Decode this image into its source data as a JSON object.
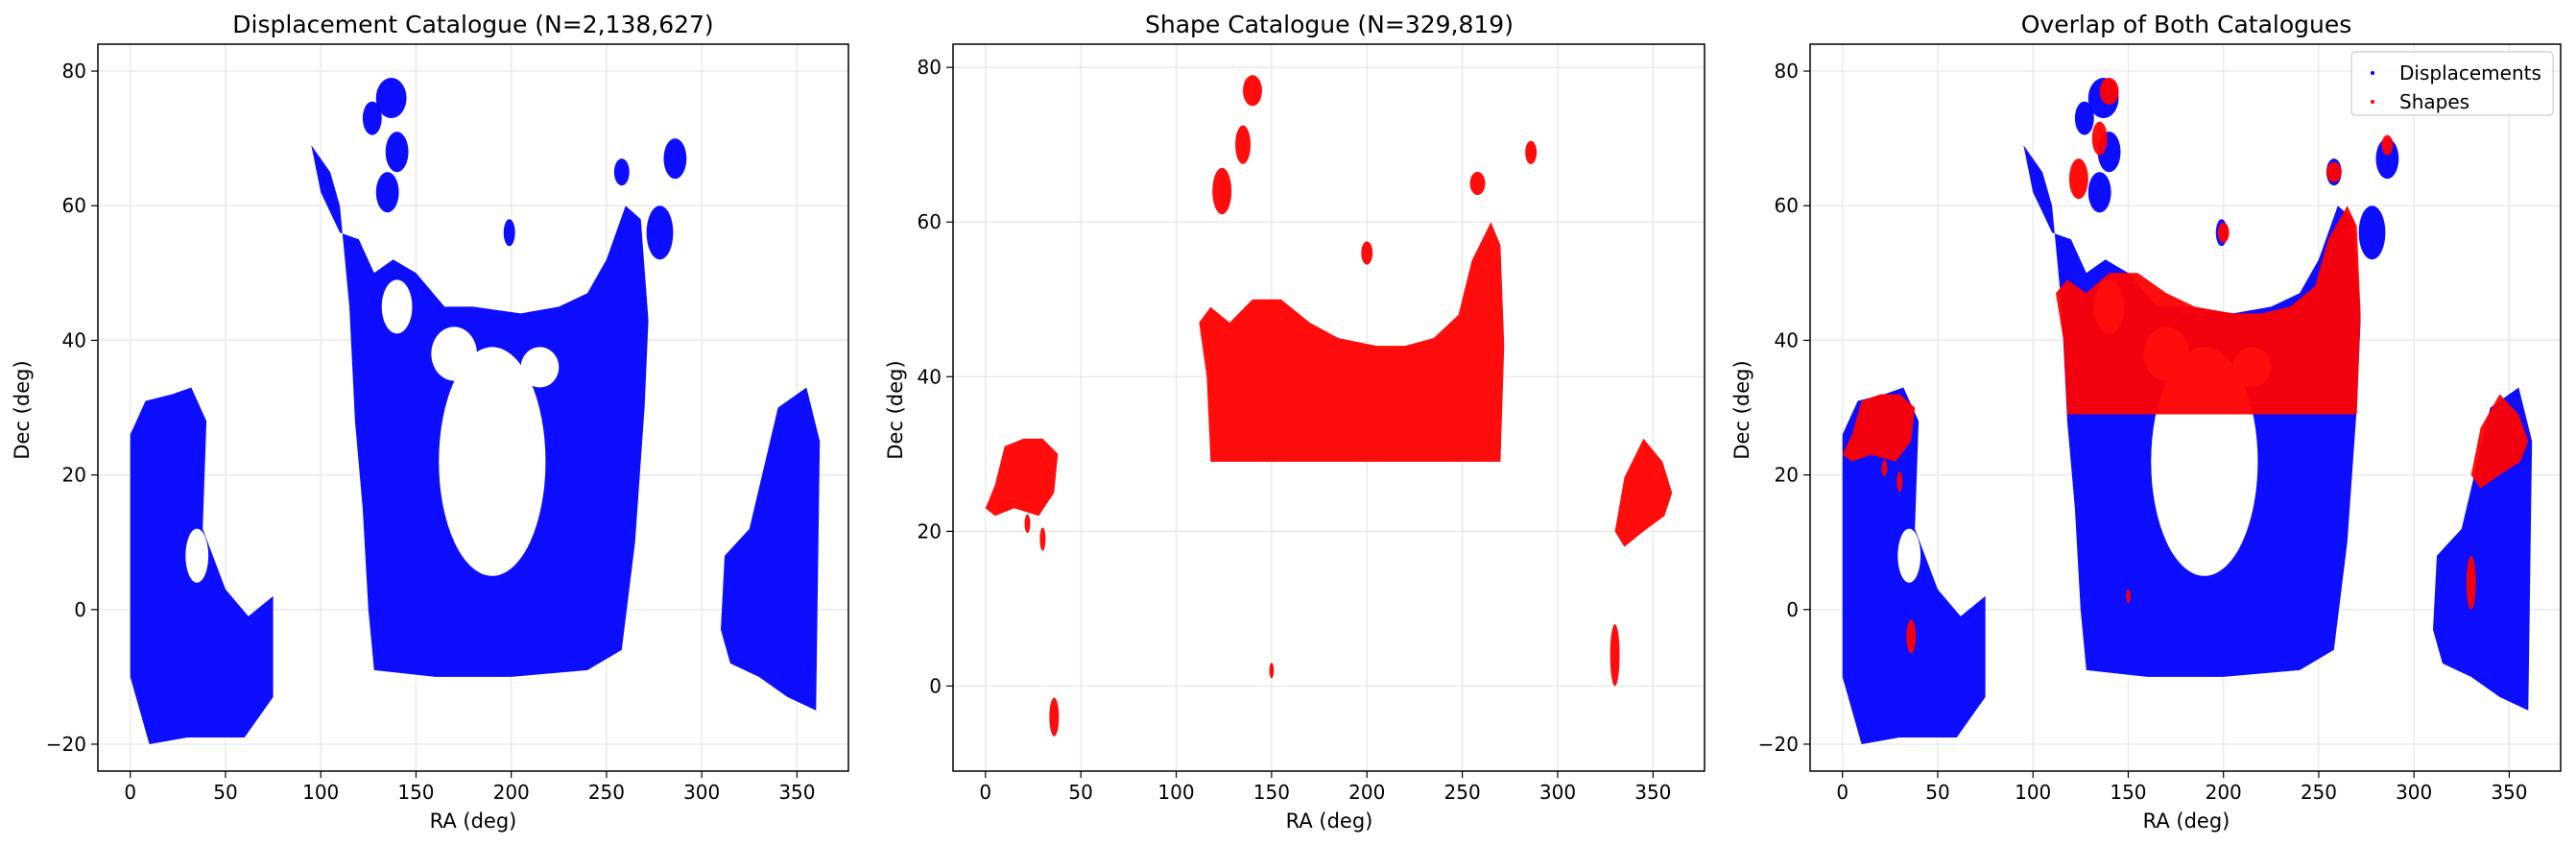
{
  "chart_data": [
    {
      "type": "scatter",
      "title": "Displacement Catalogue (N=2,138,627)",
      "xlabel": "RA (deg)",
      "ylabel": "Dec (deg)",
      "xlim": [
        -17,
        377
      ],
      "ylim": [
        -24,
        84
      ],
      "xticks": [
        "0",
        "50",
        "100",
        "150",
        "200",
        "250",
        "300",
        "350"
      ],
      "yticks": [
        "−20",
        "0",
        "20",
        "40",
        "60",
        "80"
      ],
      "grid": true,
      "series": [
        {
          "color": "#0000ff",
          "regions": [
            {
              "shape": "poly",
              "points": [
                [
                  0,
                  26
                ],
                [
                  8,
                  31
                ],
                [
                  22,
                  32
                ],
                [
                  32,
                  33
                ],
                [
                  40,
                  28
                ],
                [
                  38,
                  12
                ],
                [
                  50,
                  3
                ],
                [
                  62,
                  -1
                ],
                [
                  75,
                  2
                ],
                [
                  75,
                  -13
                ],
                [
                  60,
                  -19
                ],
                [
                  30,
                  -19
                ],
                [
                  10,
                  -20
                ],
                [
                  0,
                  -10
                ]
              ]
            },
            {
              "shape": "poly",
              "points": [
                [
                  115,
                  45
                ],
                [
                  118,
                  28
                ],
                [
                  122,
                  15
                ],
                [
                  125,
                  0
                ],
                [
                  128,
                  -9
                ],
                [
                  160,
                  -10
                ],
                [
                  200,
                  -10
                ],
                [
                  240,
                  -9
                ],
                [
                  258,
                  -6
                ],
                [
                  265,
                  10
                ],
                [
                  270,
                  30
                ],
                [
                  272,
                  43
                ],
                [
                  268,
                  58
                ],
                [
                  260,
                  60
                ],
                [
                  250,
                  52
                ],
                [
                  240,
                  47
                ],
                [
                  225,
                  45
                ],
                [
                  205,
                  44
                ],
                [
                  180,
                  45
                ],
                [
                  165,
                  45
                ],
                [
                  150,
                  50
                ],
                [
                  138,
                  52
                ],
                [
                  128,
                  50
                ],
                [
                  120,
                  55
                ],
                [
                  110,
                  56
                ],
                [
                  100,
                  62
                ],
                [
                  95,
                  69
                ],
                [
                  105,
                  65
                ],
                [
                  110,
                  60
                ]
              ]
            },
            {
              "shape": "ellipse",
              "cx": 137,
              "cy": 76,
              "rx": 8,
              "ry": 3
            },
            {
              "shape": "ellipse",
              "cx": 127,
              "cy": 73,
              "rx": 5,
              "ry": 2.5
            },
            {
              "shape": "ellipse",
              "cx": 140,
              "cy": 68,
              "rx": 6,
              "ry": 3
            },
            {
              "shape": "ellipse",
              "cx": 135,
              "cy": 62,
              "rx": 6,
              "ry": 3
            },
            {
              "shape": "ellipse",
              "cx": 199,
              "cy": 56,
              "rx": 3,
              "ry": 2
            },
            {
              "shape": "ellipse",
              "cx": 258,
              "cy": 65,
              "rx": 4,
              "ry": 2
            },
            {
              "shape": "ellipse",
              "cx": 286,
              "cy": 67,
              "rx": 6,
              "ry": 3
            },
            {
              "shape": "ellipse",
              "cx": 278,
              "cy": 56,
              "rx": 7,
              "ry": 4
            },
            {
              "shape": "poly",
              "points": [
                [
                  310,
                  -3
                ],
                [
                  312,
                  8
                ],
                [
                  325,
                  12
                ],
                [
                  340,
                  30
                ],
                [
                  355,
                  33
                ],
                [
                  362,
                  25
                ],
                [
                  360,
                  -15
                ],
                [
                  345,
                  -13
                ],
                [
                  330,
                  -10
                ],
                [
                  315,
                  -8
                ]
              ]
            }
          ],
          "holes": [
            {
              "shape": "ellipse",
              "cx": 190,
              "cy": 22,
              "rx": 28,
              "ry": 17
            },
            {
              "shape": "ellipse",
              "cx": 170,
              "cy": 38,
              "rx": 12,
              "ry": 4
            },
            {
              "shape": "ellipse",
              "cx": 215,
              "cy": 36,
              "rx": 10,
              "ry": 3
            },
            {
              "shape": "ellipse",
              "cx": 140,
              "cy": 45,
              "rx": 8,
              "ry": 4
            },
            {
              "shape": "ellipse",
              "cx": 35,
              "cy": 8,
              "rx": 6,
              "ry": 4
            }
          ]
        }
      ]
    },
    {
      "type": "scatter",
      "title": "Shape Catalogue (N=329,819)",
      "xlabel": "RA (deg)",
      "ylabel": "Dec (deg)",
      "xlim": [
        -17,
        377
      ],
      "ylim": [
        -11,
        83
      ],
      "xticks": [
        "0",
        "50",
        "100",
        "150",
        "200",
        "250",
        "300",
        "350"
      ],
      "yticks": [
        "0",
        "20",
        "40",
        "60",
        "80"
      ],
      "grid": true,
      "series": [
        {
          "color": "#ff0000",
          "regions": [
            {
              "shape": "poly",
              "points": [
                [
                  0,
                  23
                ],
                [
                  5,
                  26
                ],
                [
                  10,
                  31
                ],
                [
                  20,
                  32
                ],
                [
                  30,
                  32
                ],
                [
                  38,
                  30
                ],
                [
                  36,
                  25
                ],
                [
                  28,
                  22
                ],
                [
                  15,
                  23
                ],
                [
                  5,
                  22
                ]
              ]
            },
            {
              "shape": "ellipse",
              "cx": 22,
              "cy": 21,
              "rx": 1.5,
              "ry": 1.2
            },
            {
              "shape": "ellipse",
              "cx": 30,
              "cy": 19,
              "rx": 1.5,
              "ry": 1.5
            },
            {
              "shape": "ellipse",
              "cx": 36,
              "cy": -4,
              "rx": 2.5,
              "ry": 2.5
            },
            {
              "shape": "poly",
              "points": [
                [
                  112,
                  47
                ],
                [
                  116,
                  40
                ],
                [
                  118,
                  29
                ],
                [
                  160,
                  29
                ],
                [
                  200,
                  29
                ],
                [
                  240,
                  29
                ],
                [
                  270,
                  29
                ],
                [
                  272,
                  44
                ],
                [
                  270,
                  57
                ],
                [
                  265,
                  60
                ],
                [
                  255,
                  55
                ],
                [
                  248,
                  48
                ],
                [
                  235,
                  45
                ],
                [
                  220,
                  44
                ],
                [
                  205,
                  44
                ],
                [
                  185,
                  45
                ],
                [
                  170,
                  47
                ],
                [
                  155,
                  50
                ],
                [
                  140,
                  50
                ],
                [
                  128,
                  47
                ],
                [
                  118,
                  49
                ]
              ]
            },
            {
              "shape": "ellipse",
              "cx": 140,
              "cy": 77,
              "rx": 5,
              "ry": 2
            },
            {
              "shape": "ellipse",
              "cx": 135,
              "cy": 70,
              "rx": 4,
              "ry": 2.5
            },
            {
              "shape": "ellipse",
              "cx": 124,
              "cy": 64,
              "rx": 5,
              "ry": 3
            },
            {
              "shape": "ellipse",
              "cx": 200,
              "cy": 56,
              "rx": 3,
              "ry": 1.5
            },
            {
              "shape": "ellipse",
              "cx": 258,
              "cy": 65,
              "rx": 4,
              "ry": 1.5
            },
            {
              "shape": "ellipse",
              "cx": 286,
              "cy": 69,
              "rx": 3,
              "ry": 1.5
            },
            {
              "shape": "ellipse",
              "cx": 150,
              "cy": 2,
              "rx": 1.2,
              "ry": 1
            },
            {
              "shape": "ellipse",
              "cx": 330,
              "cy": 4,
              "rx": 2.5,
              "ry": 4
            },
            {
              "shape": "poly",
              "points": [
                [
                  330,
                  20
                ],
                [
                  335,
                  27
                ],
                [
                  345,
                  32
                ],
                [
                  355,
                  29
                ],
                [
                  360,
                  25
                ],
                [
                  356,
                  22
                ],
                [
                  345,
                  20
                ],
                [
                  335,
                  18
                ]
              ]
            }
          ],
          "holes": []
        }
      ]
    },
    {
      "type": "scatter",
      "title": "Overlap of Both Catalogues",
      "xlabel": "RA (deg)",
      "ylabel": "Dec (deg)",
      "xlim": [
        -17,
        377
      ],
      "ylim": [
        -24,
        84
      ],
      "xticks": [
        "0",
        "50",
        "100",
        "150",
        "200",
        "250",
        "300",
        "350"
      ],
      "yticks": [
        "−20",
        "0",
        "20",
        "40",
        "60",
        "80"
      ],
      "grid": true,
      "legend": {
        "placement": "top-right",
        "entries": [
          {
            "label": "Displacements",
            "color": "#0000ff"
          },
          {
            "label": "Shapes",
            "color": "#ff0000"
          }
        ]
      },
      "series_refs": [
        0,
        1
      ]
    }
  ]
}
